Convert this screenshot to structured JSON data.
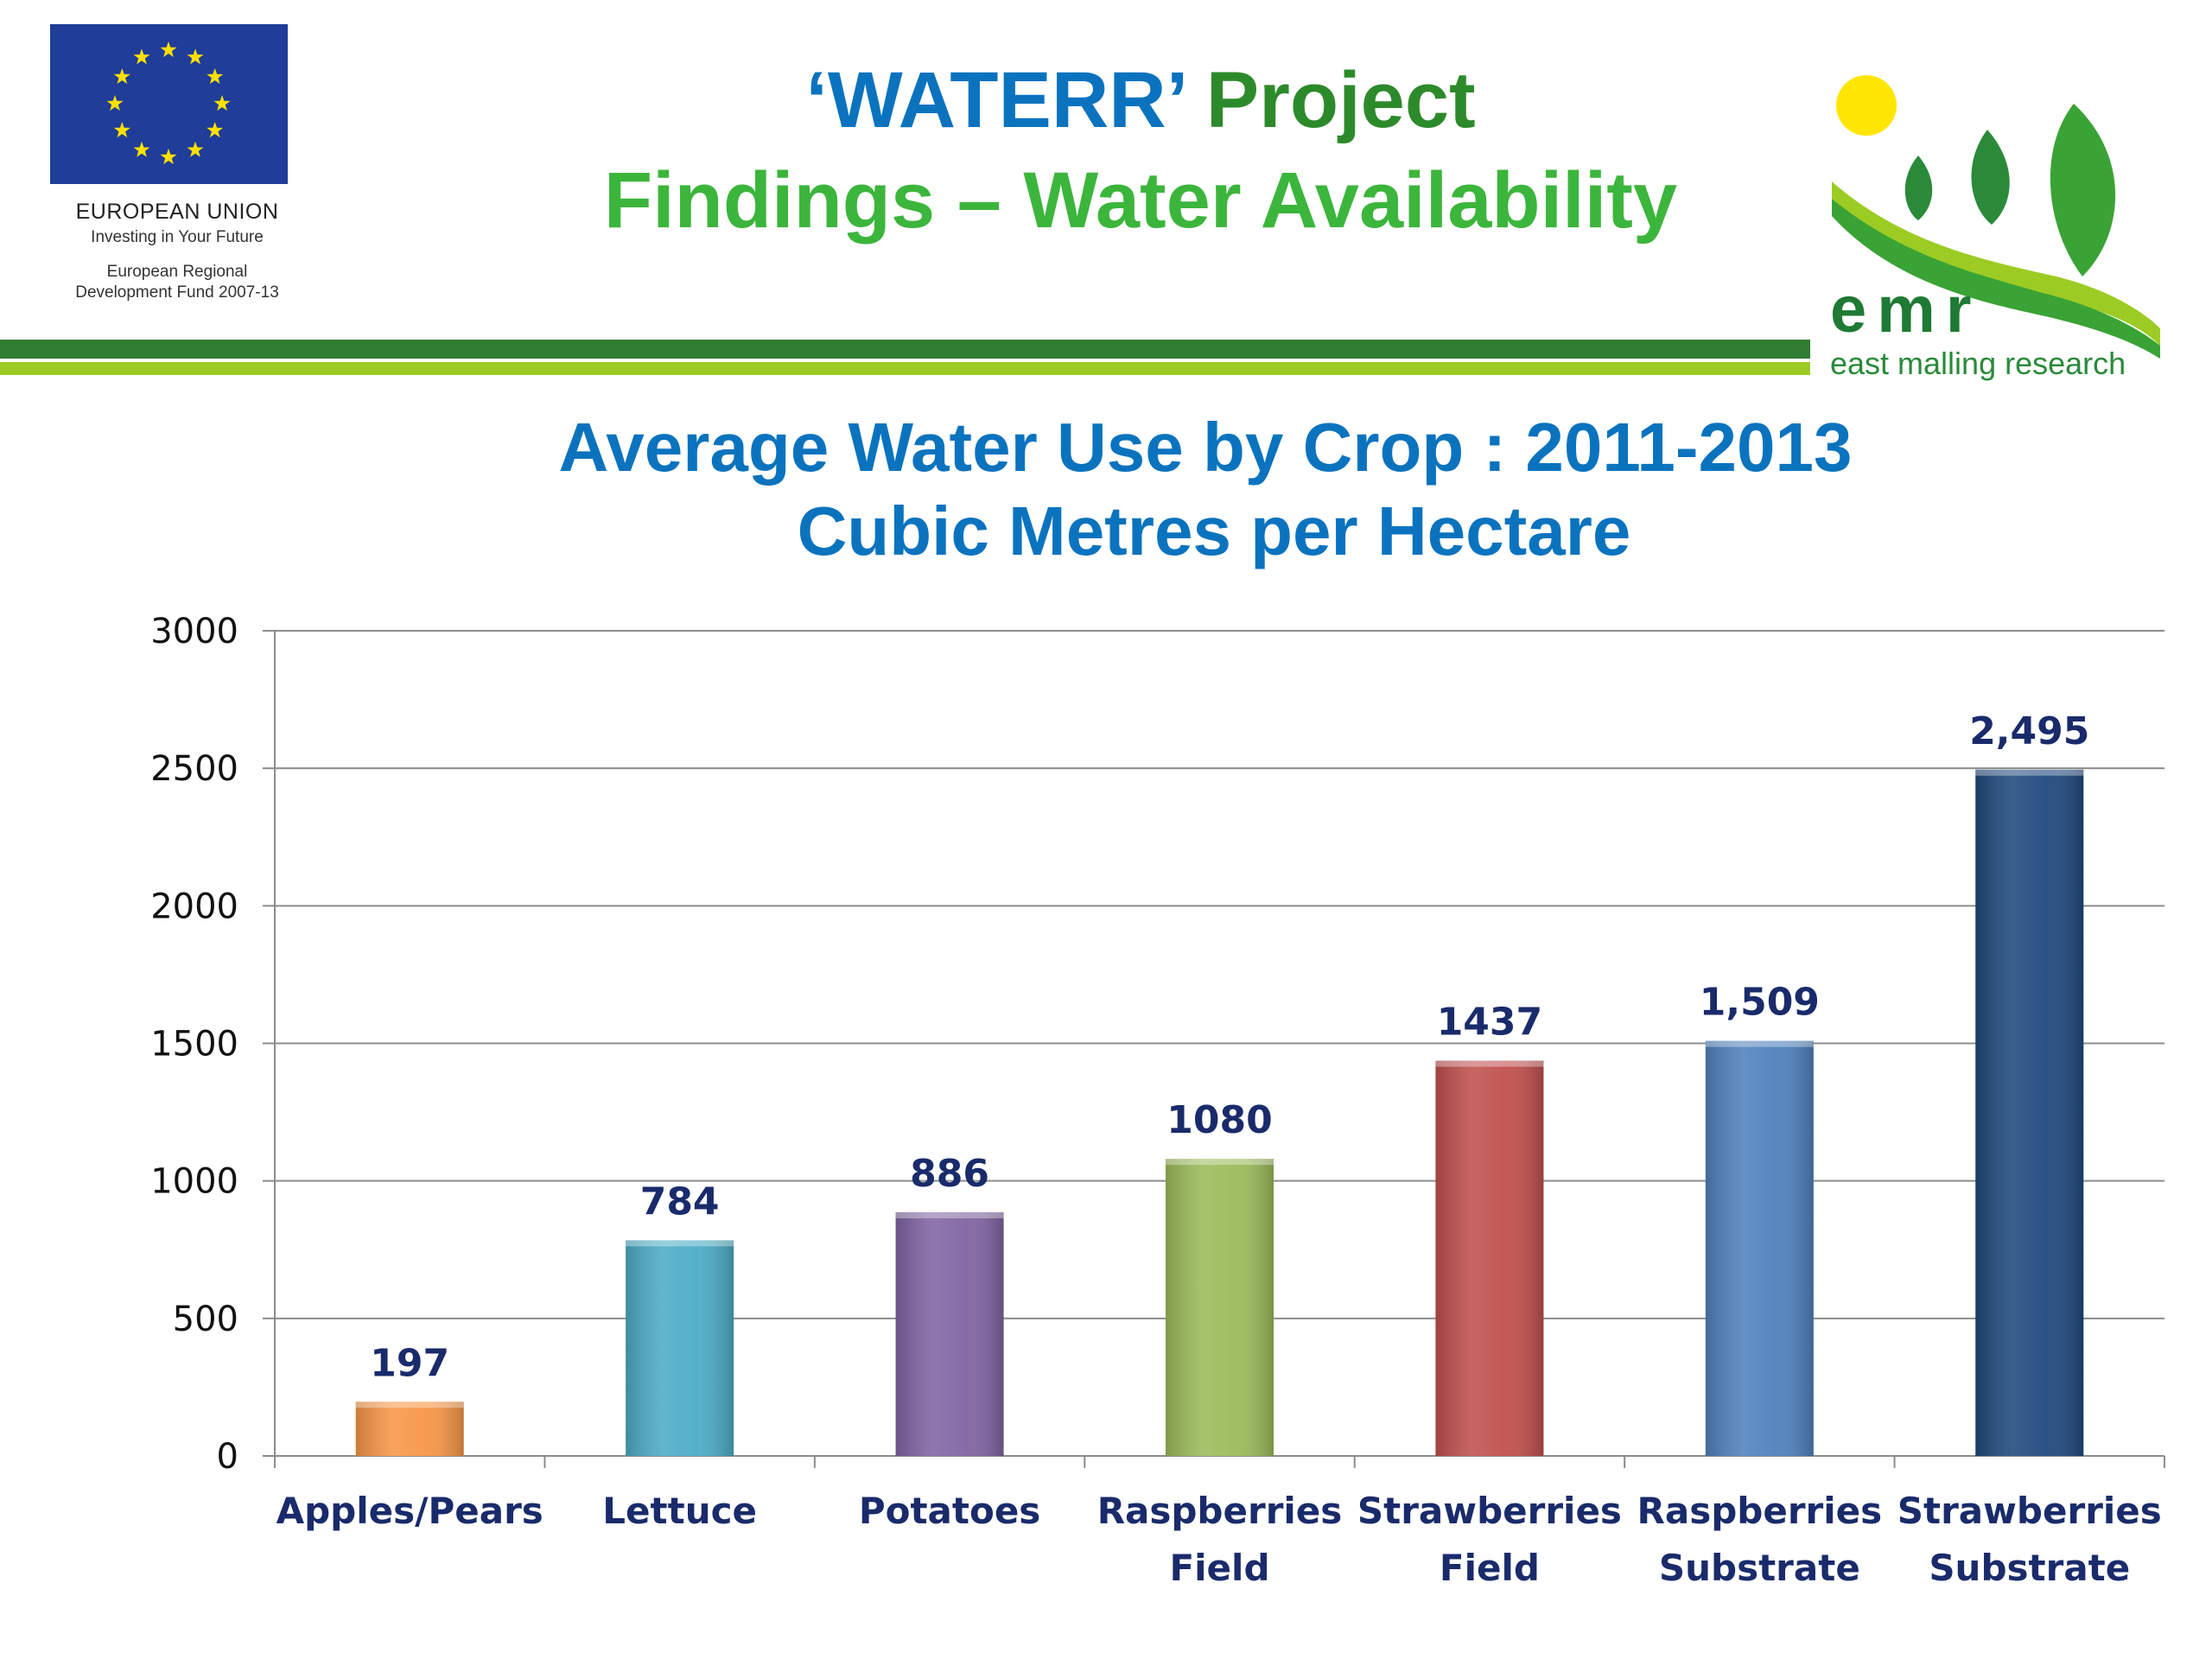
{
  "header": {
    "eu": {
      "name": "EUROPEAN UNION",
      "tagline": "Investing in Your Future",
      "fund_line1": "European Regional",
      "fund_line2": "Development Fund 2007-13"
    },
    "title_line1_part1": "‘WATERR’",
    "title_line1_part2": "Project",
    "title_line2": "Findings – Water Availability",
    "logo": {
      "word": "emr",
      "subtitle": "east malling research"
    }
  },
  "colors": {
    "title_blue": "#0b73be",
    "title_green": "#2d8a2b",
    "title_light_green": "#3cb53c",
    "label_navy": "#1a2b6b",
    "rule_dark": "#2e7d32",
    "rule_light": "#9ccc24"
  },
  "chart_data": {
    "type": "bar",
    "title": "Average Water Use by Crop : 2011-2013",
    "subtitle": "Cubic Metres per Hectare",
    "categories": [
      [
        "Apples/Pears"
      ],
      [
        "Lettuce"
      ],
      [
        "Potatoes"
      ],
      [
        "Raspberries",
        "Field"
      ],
      [
        "Strawberries",
        "Field"
      ],
      [
        "Raspberries",
        "Substrate"
      ],
      [
        "Strawberries",
        "Substrate"
      ]
    ],
    "values": [
      197,
      784,
      886,
      1080,
      1437,
      1509,
      2495
    ],
    "data_labels": [
      "197",
      "784",
      "886",
      "1080",
      "1437",
      "1,509",
      "2,495"
    ],
    "bar_colors": [
      "#f79646",
      "#4bacc6",
      "#8064a2",
      "#9bbb59",
      "#c0504d",
      "#4f81bd",
      "#1f497d"
    ],
    "yticks": [
      "0",
      "500",
      "1000",
      "1500",
      "2000",
      "2500",
      "3000"
    ],
    "ylim": [
      0,
      3000
    ],
    "grid": true,
    "legend": "none"
  }
}
